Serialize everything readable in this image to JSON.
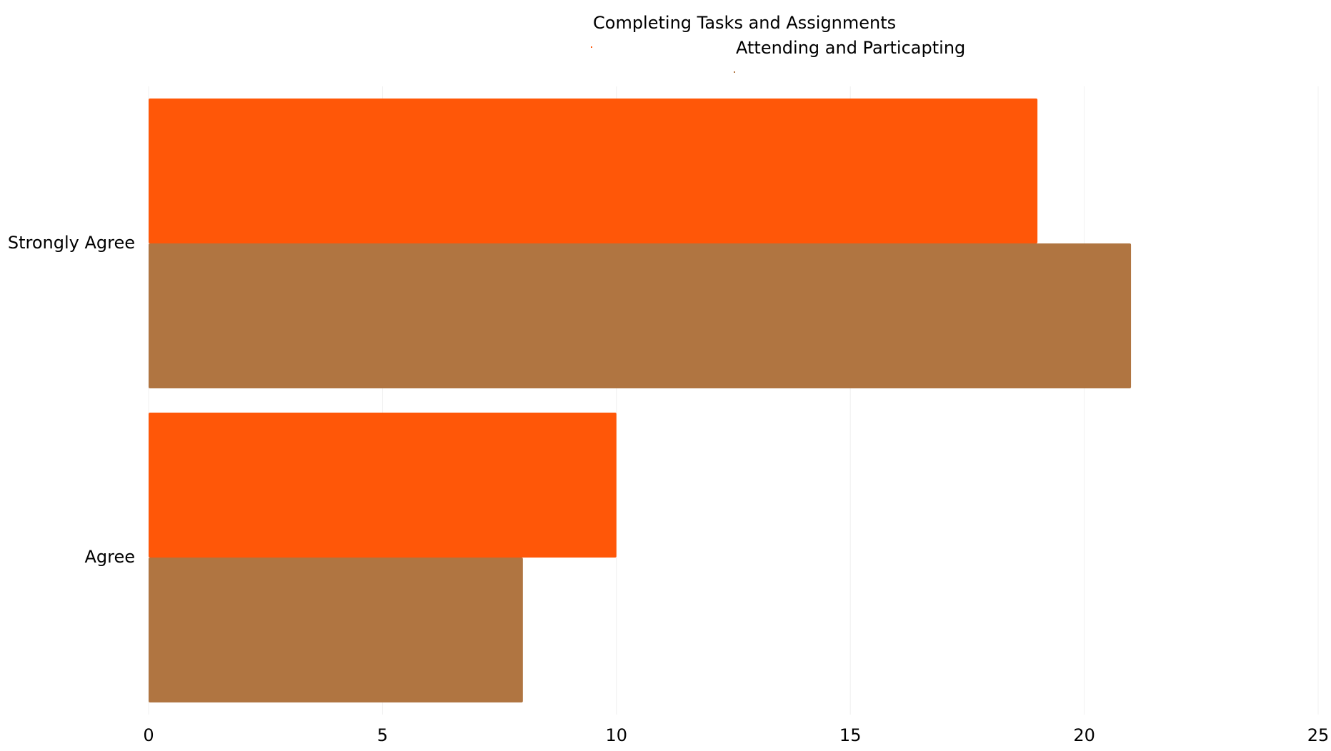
{
  "chart_data": {
    "type": "bar",
    "orientation": "horizontal",
    "categories": [
      "Strongly Agree",
      "Agree"
    ],
    "series": [
      {
        "name": "Completing Tasks and Assignments",
        "values": [
          19,
          10
        ],
        "color": "#FF5708"
      },
      {
        "name": "Attending and Particapting",
        "values": [
          21,
          8
        ],
        "color": "#B07541"
      }
    ],
    "xlim": [
      0,
      25
    ],
    "xticks": [
      0,
      5,
      10,
      15,
      20,
      25
    ],
    "grid": true,
    "legend": "top"
  }
}
